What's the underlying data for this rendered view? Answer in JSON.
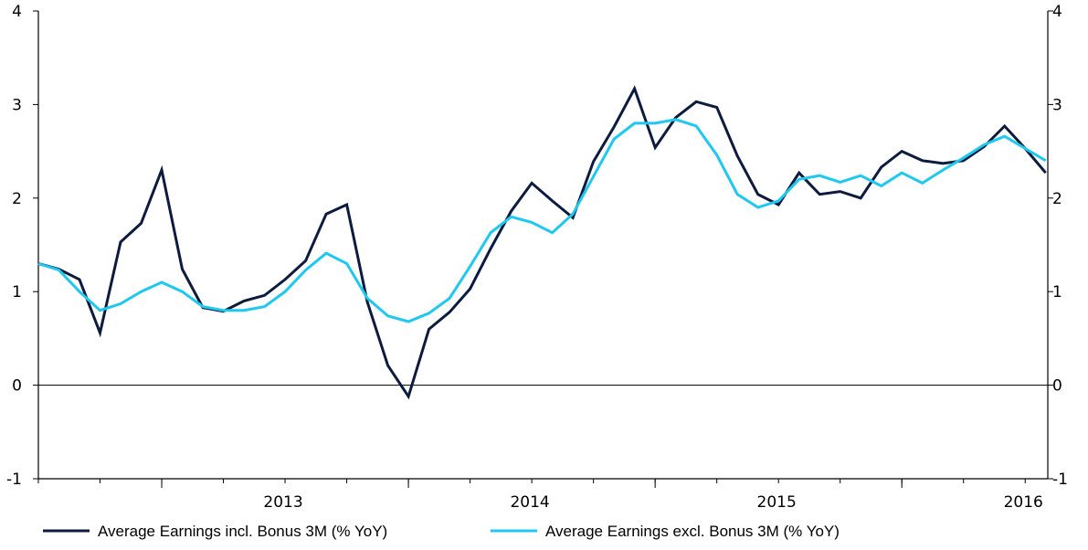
{
  "chart_data": {
    "type": "line",
    "x": [
      "2012-07",
      "2012-08",
      "2012-09",
      "2012-10",
      "2012-11",
      "2012-12",
      "2013-01",
      "2013-02",
      "2013-03",
      "2013-04",
      "2013-05",
      "2013-06",
      "2013-07",
      "2013-08",
      "2013-09",
      "2013-10",
      "2013-11",
      "2013-12",
      "2014-01",
      "2014-02",
      "2014-03",
      "2014-04",
      "2014-05",
      "2014-06",
      "2014-07",
      "2014-08",
      "2014-09",
      "2014-10",
      "2014-11",
      "2014-12",
      "2015-01",
      "2015-02",
      "2015-03",
      "2015-04",
      "2015-05",
      "2015-06",
      "2015-07",
      "2015-08",
      "2015-09",
      "2015-10",
      "2015-11",
      "2015-12",
      "2016-01",
      "2016-02",
      "2016-03",
      "2016-04",
      "2016-05",
      "2016-06",
      "2016-07",
      "2016-08"
    ],
    "series": [
      {
        "name": "Average Earnings incl. Bonus 3M (% YoY)",
        "color": "#0d1b3e",
        "values": [
          1.3,
          1.24,
          1.13,
          0.56,
          1.53,
          1.73,
          2.3,
          1.24,
          0.83,
          0.79,
          0.9,
          0.96,
          1.13,
          1.33,
          1.83,
          1.93,
          0.89,
          0.21,
          -0.12,
          0.6,
          0.78,
          1.03,
          1.46,
          1.86,
          2.16,
          1.97,
          1.79,
          2.39,
          2.76,
          3.17,
          2.54,
          2.86,
          3.03,
          2.97,
          2.45,
          2.04,
          1.93,
          2.27,
          2.04,
          2.07,
          2.0,
          2.33,
          2.5,
          2.4,
          2.37,
          2.4,
          2.55,
          2.77,
          2.53,
          2.27
        ]
      },
      {
        "name": "Average Earnings excl. Bonus 3M (% YoY)",
        "color": "#1ec8f0",
        "values": [
          1.3,
          1.23,
          1.0,
          0.8,
          0.87,
          1.0,
          1.1,
          1.0,
          0.84,
          0.8,
          0.8,
          0.84,
          1.0,
          1.23,
          1.41,
          1.3,
          0.93,
          0.74,
          0.68,
          0.77,
          0.93,
          1.27,
          1.63,
          1.8,
          1.74,
          1.63,
          1.83,
          2.23,
          2.63,
          2.8,
          2.8,
          2.84,
          2.77,
          2.46,
          2.04,
          1.9,
          1.97,
          2.2,
          2.24,
          2.17,
          2.24,
          2.13,
          2.27,
          2.16,
          2.3,
          2.43,
          2.57,
          2.66,
          2.53,
          2.4
        ]
      }
    ],
    "year_labels": [
      "2013",
      "2014",
      "2015",
      "2016"
    ],
    "year_start_x": [
      "2013-01",
      "2014-01",
      "2015-01",
      "2016-01"
    ],
    "x_end": "2016-09",
    "y_ticks": [
      "4",
      "3",
      "2",
      "1",
      "0",
      "-1"
    ],
    "ylim": [
      -1,
      4
    ],
    "grid": false,
    "zero_line": true,
    "dual_axis_labels": true,
    "legend_position": "bottom"
  }
}
